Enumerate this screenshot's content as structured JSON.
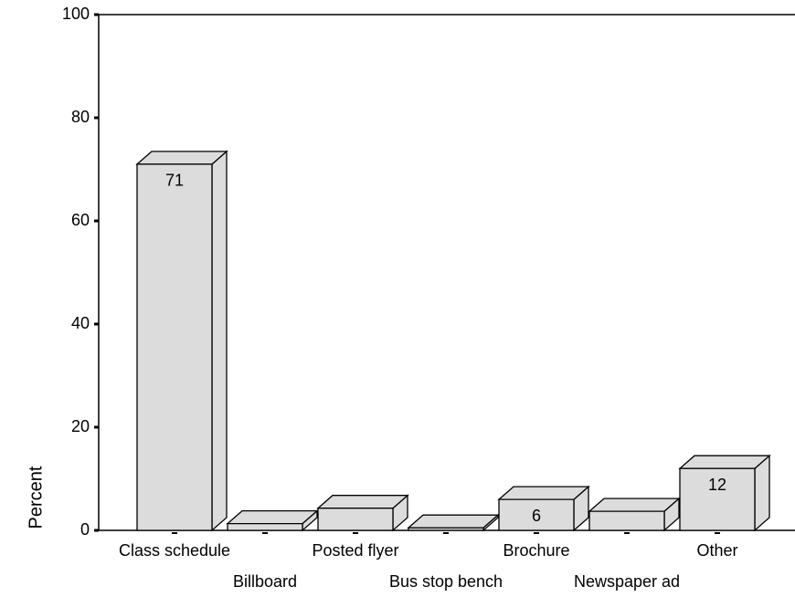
{
  "chart_data": {
    "type": "bar3d",
    "y_label": "Percent",
    "categories": [
      "Class schedule",
      "Billboard",
      "Posted flyer",
      "Bus stop bench",
      "Brochure",
      "Newspaper ad",
      "Other"
    ],
    "values": [
      71,
      1.3,
      4.3,
      0.5,
      6,
      3.7,
      12
    ],
    "value_labels": [
      "71",
      null,
      null,
      null,
      "6",
      null,
      "12"
    ],
    "color": "#dcdcdc",
    "ylim": [
      0,
      100
    ],
    "yticks": [
      0,
      20,
      40,
      60,
      80,
      100
    ]
  }
}
